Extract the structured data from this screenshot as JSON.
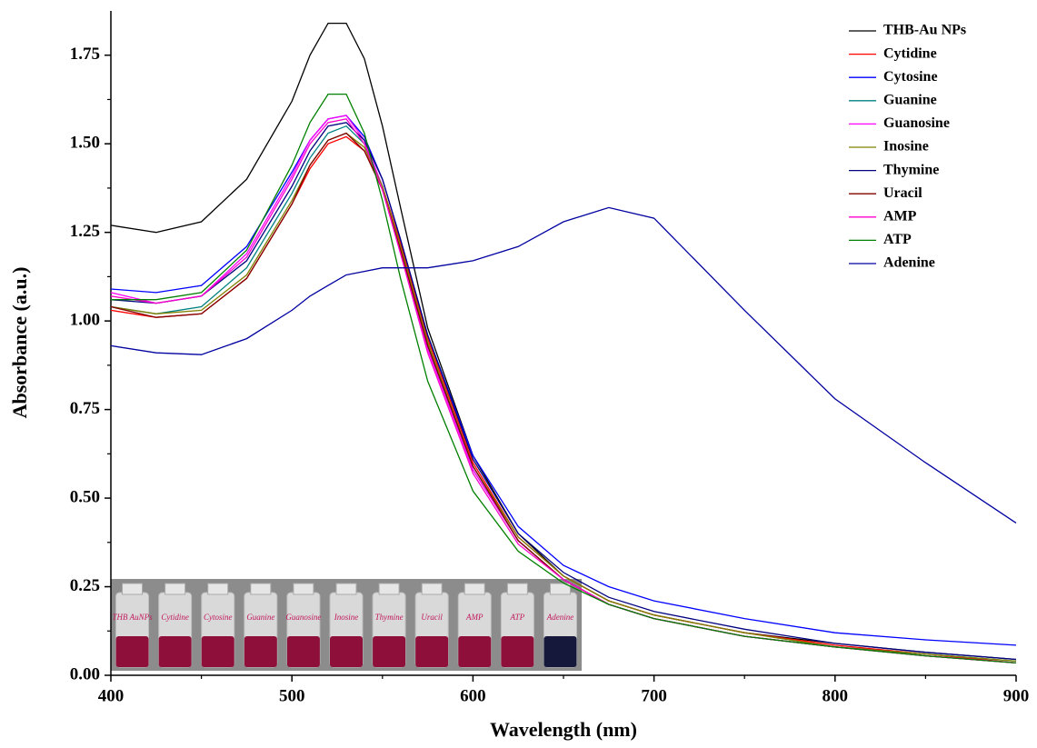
{
  "chart_data": {
    "type": "line",
    "x_label": "Wavelength (nm)",
    "y_label": "Absorbance (a.u.)",
    "xlim": [
      400,
      900
    ],
    "xticks": [
      400,
      500,
      600,
      700,
      800,
      900
    ],
    "ylim": [
      0,
      1.875
    ],
    "yticks": [
      {
        "value": 0,
        "label": "0.00"
      },
      0.25,
      {
        "value": 0.5,
        "label": "0.50"
      },
      0.75,
      {
        "value": 1,
        "label": "1.00"
      },
      1.25,
      {
        "value": 1.5,
        "label": "1.50"
      },
      1.75
    ],
    "legend_position": "upper right",
    "x": [
      400,
      425,
      450,
      475,
      500,
      510,
      520,
      530,
      540,
      550,
      560,
      575,
      600,
      625,
      650,
      675,
      700,
      750,
      800,
      850,
      900
    ],
    "series": [
      {
        "name": "THB-Au NPs",
        "color": "#000000",
        "values": [
          1.27,
          1.25,
          1.28,
          1.4,
          1.62,
          1.75,
          1.84,
          1.84,
          1.74,
          1.55,
          1.32,
          0.98,
          0.62,
          0.4,
          0.28,
          0.21,
          0.17,
          0.12,
          0.09,
          0.065,
          0.045
        ]
      },
      {
        "name": "Cytidine",
        "color": "#ff0000",
        "values": [
          1.03,
          1.01,
          1.02,
          1.12,
          1.33,
          1.43,
          1.5,
          1.52,
          1.48,
          1.38,
          1.22,
          0.95,
          0.6,
          0.39,
          0.28,
          0.21,
          0.17,
          0.12,
          0.085,
          0.06,
          0.035
        ]
      },
      {
        "name": "Cytosine",
        "color": "#0000ff",
        "values": [
          1.09,
          1.08,
          1.1,
          1.21,
          1.42,
          1.51,
          1.57,
          1.58,
          1.52,
          1.4,
          1.23,
          0.96,
          0.62,
          0.42,
          0.31,
          0.25,
          0.21,
          0.16,
          0.12,
          0.1,
          0.085
        ]
      },
      {
        "name": "Guanine",
        "color": "#008080",
        "values": [
          1.04,
          1.02,
          1.04,
          1.15,
          1.36,
          1.46,
          1.53,
          1.55,
          1.5,
          1.38,
          1.2,
          0.93,
          0.58,
          0.38,
          0.27,
          0.2,
          0.16,
          0.11,
          0.08,
          0.06,
          0.04
        ]
      },
      {
        "name": "Guanosine",
        "color": "#ff00ff",
        "values": [
          1.08,
          1.05,
          1.07,
          1.19,
          1.41,
          1.51,
          1.57,
          1.58,
          1.51,
          1.38,
          1.2,
          0.92,
          0.58,
          0.38,
          0.27,
          0.2,
          0.16,
          0.11,
          0.08,
          0.055,
          0.035
        ]
      },
      {
        "name": "Inosine",
        "color": "#808000",
        "values": [
          1.04,
          1.02,
          1.03,
          1.13,
          1.34,
          1.44,
          1.51,
          1.53,
          1.49,
          1.38,
          1.21,
          0.94,
          0.59,
          0.39,
          0.28,
          0.21,
          0.17,
          0.12,
          0.08,
          0.06,
          0.04
        ]
      },
      {
        "name": "Thymine",
        "color": "#000080",
        "values": [
          1.06,
          1.05,
          1.07,
          1.17,
          1.38,
          1.48,
          1.55,
          1.56,
          1.51,
          1.4,
          1.23,
          0.96,
          0.61,
          0.4,
          0.29,
          0.22,
          0.18,
          0.13,
          0.09,
          0.065,
          0.045
        ]
      },
      {
        "name": "Uracil",
        "color": "#800000",
        "values": [
          1.04,
          1.01,
          1.02,
          1.12,
          1.33,
          1.44,
          1.51,
          1.53,
          1.48,
          1.37,
          1.2,
          0.93,
          0.59,
          0.38,
          0.27,
          0.2,
          0.16,
          0.11,
          0.08,
          0.055,
          0.035
        ]
      },
      {
        "name": "AMP",
        "color": "#ff00cc",
        "values": [
          1.07,
          1.05,
          1.07,
          1.18,
          1.4,
          1.5,
          1.56,
          1.57,
          1.5,
          1.37,
          1.19,
          0.91,
          0.57,
          0.37,
          0.27,
          0.2,
          0.16,
          0.11,
          0.08,
          0.055,
          0.035
        ]
      },
      {
        "name": "ATP",
        "color": "#008000",
        "values": [
          1.06,
          1.06,
          1.08,
          1.2,
          1.44,
          1.56,
          1.64,
          1.64,
          1.53,
          1.34,
          1.12,
          0.83,
          0.52,
          0.35,
          0.26,
          0.2,
          0.16,
          0.11,
          0.08,
          0.055,
          0.035
        ]
      },
      {
        "name": "Adenine",
        "color": "#0000a0",
        "values": [
          0.93,
          0.91,
          0.905,
          0.95,
          1.03,
          1.07,
          1.1,
          1.13,
          1.14,
          1.15,
          1.15,
          1.15,
          1.17,
          1.21,
          1.28,
          1.32,
          1.29,
          1.03,
          0.78,
          0.6,
          0.43
        ]
      }
    ],
    "inset_labels": [
      "THB AuNPs",
      "Cytidine",
      "Cytosine",
      "Guanine",
      "Guanosine",
      "Inosine",
      "Thymine",
      "Uracil",
      "AMP",
      "ATP",
      "Adenine"
    ],
    "inset_colors": [
      "#8e0f3a",
      "#8e0f3a",
      "#8e0f3a",
      "#8e0f3a",
      "#8e0f3a",
      "#8e0f3a",
      "#8e0f3a",
      "#8e0f3a",
      "#8e0f3a",
      "#8e0f3a",
      "#15183a"
    ]
  }
}
